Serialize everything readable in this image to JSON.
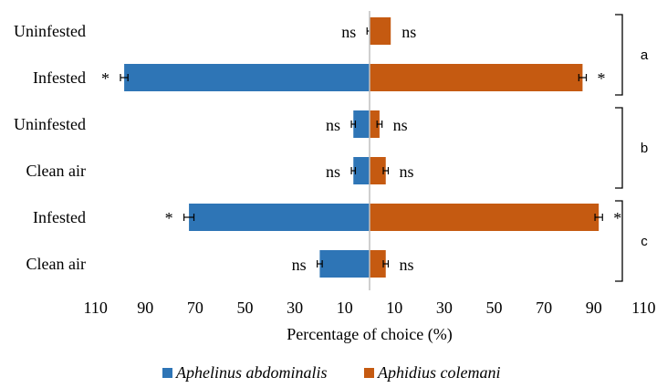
{
  "chart_data": {
    "type": "bar",
    "orientation": "horizontal-diverging",
    "xlabel": "Percentage of choice (%)",
    "xlim": [
      -110,
      110
    ],
    "x_ticks": [
      -110,
      -90,
      -70,
      -50,
      -30,
      -10,
      10,
      30,
      50,
      70,
      90,
      110
    ],
    "x_tick_labels": [
      "110",
      "90",
      "70",
      "50",
      "30",
      "10",
      "10",
      "30",
      "50",
      "70",
      "90",
      "110"
    ],
    "categories": [
      "Uninfested",
      "Infested",
      "Uninfested",
      "Clean air",
      "Infested",
      "Clean air"
    ],
    "series": [
      {
        "name": "Aphelinus abdominalis",
        "color": "#2e75b6",
        "direction": "left",
        "values": [
          0,
          98.5,
          6.5,
          6.5,
          72.5,
          20
        ],
        "errors": [
          1,
          1.5,
          0.8,
          0.8,
          2,
          1
        ],
        "labels": [
          "ns",
          "*",
          "ns",
          "ns",
          "*",
          "ns"
        ]
      },
      {
        "name": "Aphidius colemani",
        "color": "#c55a11",
        "direction": "right",
        "values": [
          8.5,
          85.5,
          4,
          6.5,
          92,
          6.5
        ],
        "errors": [
          0,
          1.5,
          1,
          1,
          1.5,
          1
        ],
        "labels": [
          "ns",
          "*",
          "ns",
          "ns",
          "*",
          "ns"
        ]
      }
    ],
    "groups": [
      {
        "label": "a",
        "rows": [
          0,
          1
        ]
      },
      {
        "label": "b",
        "rows": [
          2,
          3
        ]
      },
      {
        "label": "c",
        "rows": [
          4,
          5
        ]
      }
    ],
    "legend_position": "bottom"
  }
}
